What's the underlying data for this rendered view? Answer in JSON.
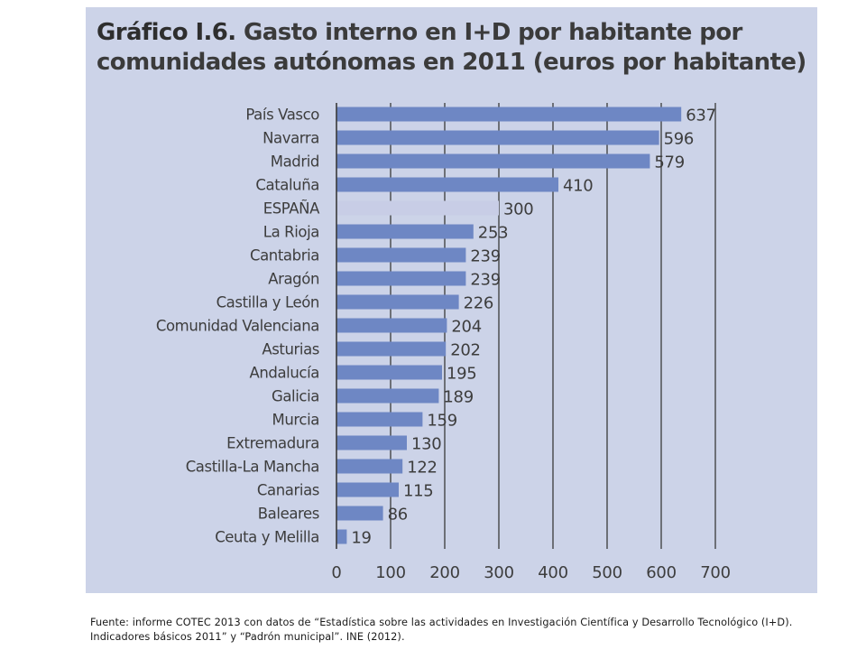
{
  "title": {
    "number": "Gráfico I.6.",
    "text": "Gasto interno en I+D por habitante por comunidades autónomas en 2011 (euros por habitante)"
  },
  "source": "Fuente: informe COTEC 2013 con datos de “Estadística sobre las actividades en Investigación Científica y Desarrollo Tecnológico (I+D). Indicadores básicos 2011” y “Padrón municipal”. INE (2012).",
  "colors": {
    "panel": "#ccd3e8",
    "bar": "#6e87c4",
    "bar_highlight": "#c8cde6",
    "grid": "#3a3a3a"
  },
  "chart_data": {
    "type": "bar",
    "orientation": "horizontal",
    "title": "Gráfico I.6. Gasto interno en I+D por habitante por comunidades autónomas en 2011 (euros por habitante)",
    "categories": [
      "País Vasco",
      "Navarra",
      "Madrid",
      "Cataluña",
      "ESPAÑA",
      "La Rioja",
      "Cantabria",
      "Aragón",
      "Castilla y León",
      "Comunidad Valenciana",
      "Asturias",
      "Andalucía",
      "Galicia",
      "Murcia",
      "Extremadura",
      "Castilla-La Mancha",
      "Canarias",
      "Baleares",
      "Ceuta y Melilla"
    ],
    "values": [
      637,
      596,
      579,
      410,
      300,
      253,
      239,
      239,
      226,
      204,
      202,
      195,
      189,
      159,
      130,
      122,
      115,
      86,
      19
    ],
    "value_labels": [
      "637",
      "596",
      "579",
      "410",
      "300",
      "253",
      "239",
      "239",
      "226",
      "204",
      "202",
      "195",
      "189",
      "159",
      "130",
      "122",
      "115",
      "86",
      "19"
    ],
    "highlight": "ESPAÑA",
    "xlim": [
      0,
      700
    ],
    "xticks": [
      0,
      100,
      200,
      300,
      400,
      500,
      600,
      700
    ],
    "xtick_labels": [
      "0",
      "100",
      "200",
      "300",
      "400",
      "500",
      "600",
      "700"
    ],
    "grid": true,
    "legend": "none"
  }
}
